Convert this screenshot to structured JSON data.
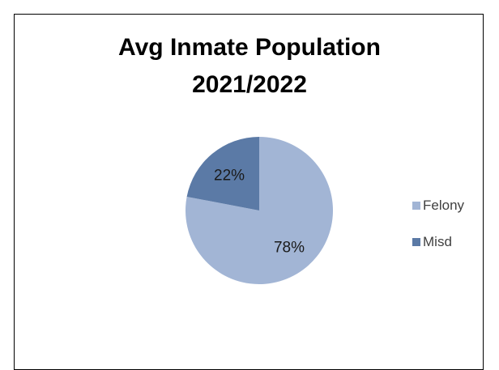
{
  "chart_data": {
    "type": "pie",
    "title_lines": [
      "Avg Inmate Population",
      "2021/2022"
    ],
    "categories": [
      "Felony",
      "Misd"
    ],
    "values": [
      78,
      22
    ],
    "data_labels": [
      "78%",
      "22%"
    ],
    "colors": [
      "#a2b5d5",
      "#5b7aa6"
    ],
    "legend_position": "right",
    "start_angle_deg": 0,
    "direction": "clockwise"
  }
}
